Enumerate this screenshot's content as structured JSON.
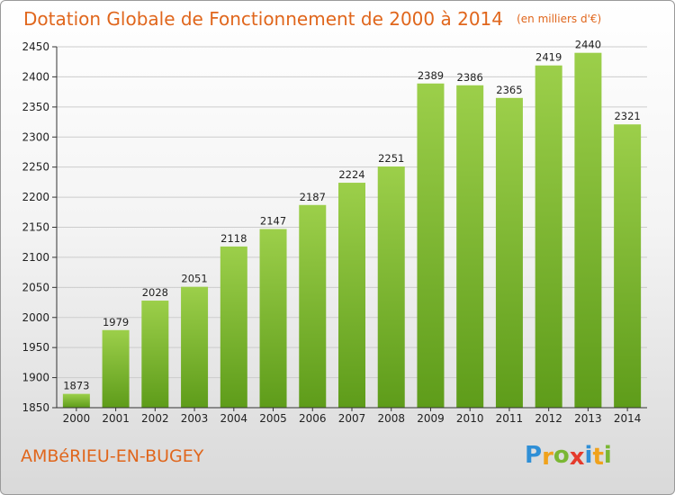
{
  "chart_data": {
    "type": "bar",
    "title": "Dotation Globale de Fonctionnement de 2000 à 2014",
    "subtitle": "(en milliers d'€)",
    "categories": [
      "2000",
      "2001",
      "2002",
      "2003",
      "2004",
      "2005",
      "2006",
      "2007",
      "2008",
      "2009",
      "2010",
      "2011",
      "2012",
      "2013",
      "2014"
    ],
    "values": [
      1873,
      1979,
      2028,
      2051,
      2118,
      2147,
      2187,
      2224,
      2251,
      2389,
      2386,
      2365,
      2419,
      2440,
      2321
    ],
    "ylim": [
      1850,
      2450
    ],
    "yticks": [
      1850,
      1900,
      1950,
      2000,
      2050,
      2100,
      2150,
      2200,
      2250,
      2300,
      2350,
      2400,
      2450
    ],
    "grid": true,
    "bar_color_top": "#9ccf4a",
    "bar_color_bottom": "#5e9c1a"
  },
  "footer": {
    "place": "AMBéRIEU-EN-BUGEY",
    "logo": [
      "P",
      "r",
      "o",
      "x",
      "i",
      "t",
      "i"
    ],
    "logo_colors": [
      "#2f8fd6",
      "#f0a21c",
      "#7ab733",
      "#e53b2c",
      "#2f8fd6",
      "#f0a21c",
      "#7ab733"
    ]
  },
  "colors": {
    "title": "#e0661c",
    "axis": "#333333",
    "grid": "#cccccc"
  }
}
